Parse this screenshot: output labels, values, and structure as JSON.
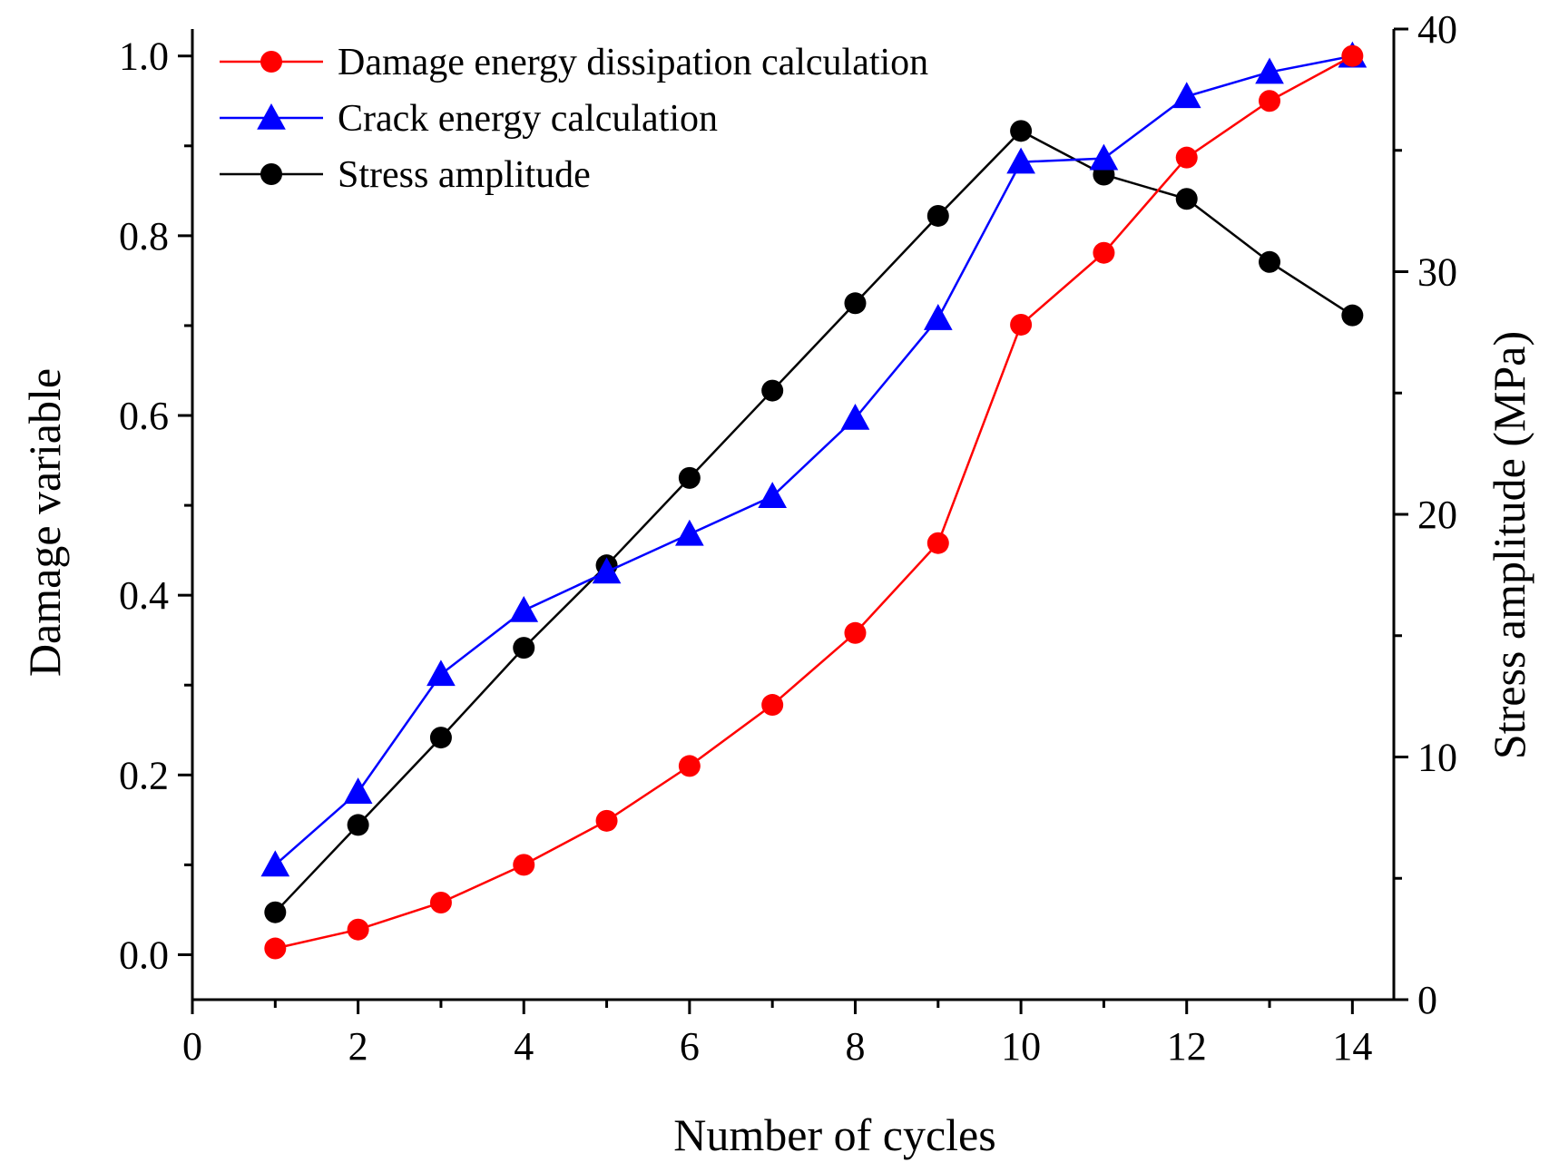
{
  "chart_data": {
    "type": "line",
    "xlabel": "Number of cycles",
    "ylabel": "Damage variable",
    "y2label": "Stress amplitude (MPa)",
    "xlim": [
      0,
      14.5
    ],
    "ylim": [
      -0.05,
      1.03
    ],
    "y2lim": [
      0,
      40
    ],
    "xticks": [
      0,
      2,
      4,
      6,
      8,
      10,
      12,
      14
    ],
    "xtick_labels": [
      "0",
      "2",
      "4",
      "6",
      "8",
      "10",
      "12",
      "14"
    ],
    "yticks": [
      0.0,
      0.2,
      0.4,
      0.6,
      0.8,
      1.0
    ],
    "ytick_labels": [
      "0.0",
      "0.2",
      "0.4",
      "0.6",
      "0.8",
      "1.0"
    ],
    "y2ticks": [
      0,
      10,
      20,
      30,
      40
    ],
    "y2tick_labels": [
      "0",
      "10",
      "20",
      "30",
      "40"
    ],
    "legend_position": "top-left",
    "x": [
      1,
      2,
      3,
      4,
      5,
      6,
      7,
      8,
      9,
      10,
      11,
      12,
      13,
      14
    ],
    "series": [
      {
        "name": "Damage energy dissipation calculation",
        "axis": "left",
        "color": "#ff0000",
        "marker": "circle",
        "values": [
          0.007,
          0.028,
          0.058,
          0.1,
          0.149,
          0.21,
          0.278,
          0.358,
          0.458,
          0.701,
          0.781,
          0.887,
          0.95,
          1.0
        ]
      },
      {
        "name": "Crack energy calculation",
        "axis": "left",
        "color": "#0000ff",
        "marker": "triangle",
        "values": [
          0.1,
          0.181,
          0.312,
          0.383,
          0.426,
          0.468,
          0.51,
          0.597,
          0.708,
          0.882,
          0.886,
          0.955,
          0.982,
          1.0
        ]
      },
      {
        "name": "Stress amplitude",
        "axis": "right",
        "color": "#000000",
        "marker": "circle",
        "values": [
          3.6,
          7.2,
          10.8,
          14.5,
          17.9,
          21.5,
          25.1,
          28.7,
          32.3,
          35.8,
          34.0,
          33.0,
          30.4,
          28.2
        ]
      }
    ]
  }
}
